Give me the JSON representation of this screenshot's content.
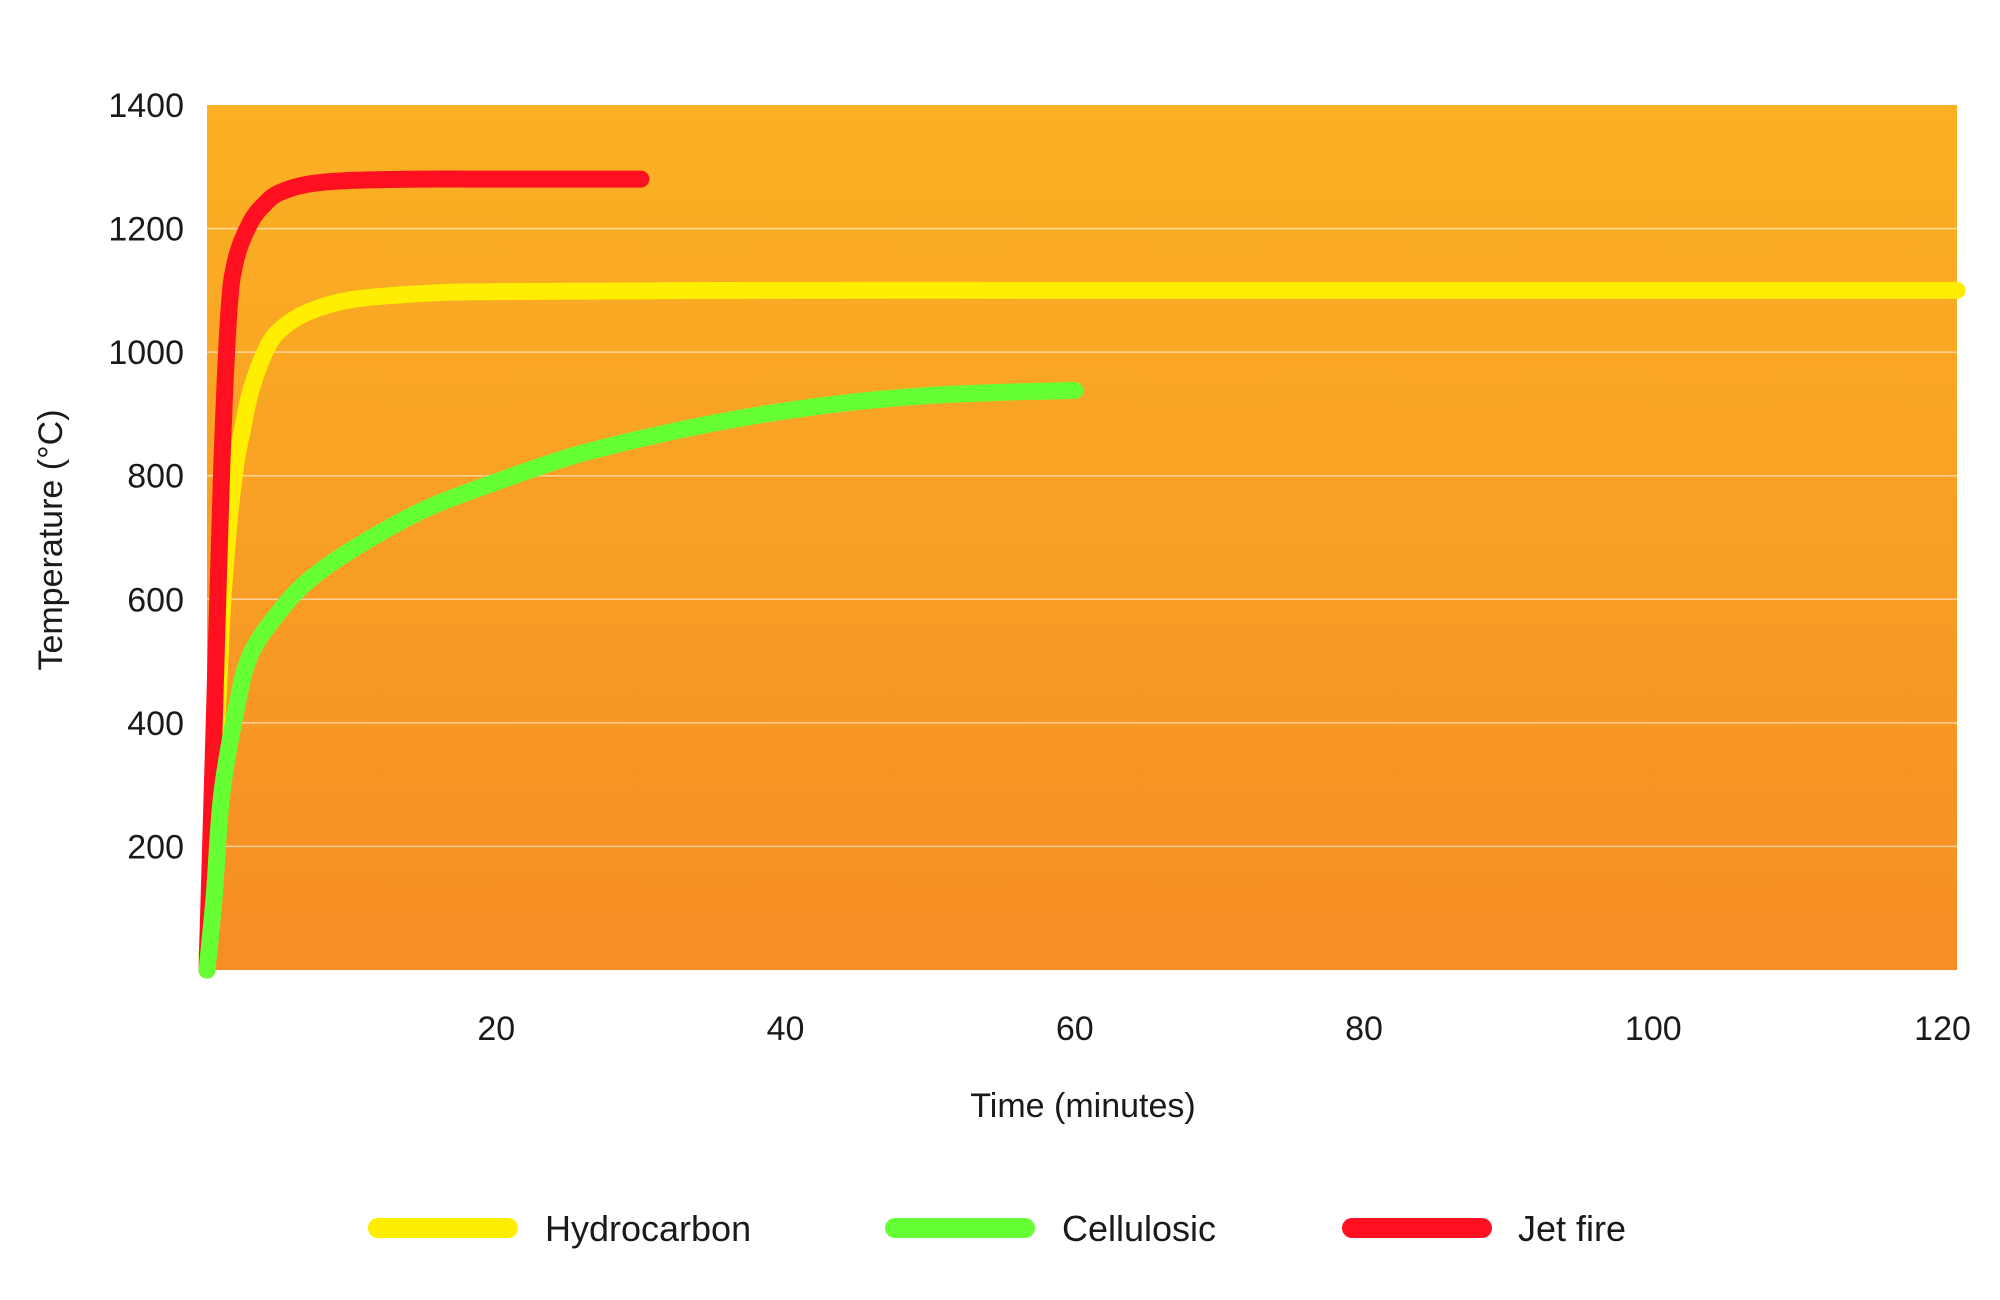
{
  "chart_data": {
    "type": "line",
    "xlabel": "Time (minutes)",
    "ylabel": "Temperature (°C)",
    "xlim": [
      0,
      121
    ],
    "ylim": [
      0,
      1400
    ],
    "x_ticks": [
      20,
      40,
      60,
      80,
      100,
      120
    ],
    "y_ticks": [
      200,
      400,
      600,
      800,
      1000,
      1200,
      1400
    ],
    "grid": true,
    "legend_position": "bottom",
    "plot_background": [
      "#FBB123",
      "#F68D25"
    ],
    "series": [
      {
        "name": "Hydrocarbon",
        "color": "#FFEE00",
        "x": [
          0,
          0.5,
          1,
          1.5,
          2,
          2.5,
          3,
          4,
          5,
          7,
          10,
          15,
          20,
          40,
          60,
          80,
          100,
          121
        ],
        "y": [
          20,
          300,
          560,
          720,
          820,
          880,
          935,
          1000,
          1035,
          1065,
          1085,
          1095,
          1098,
          1100,
          1100,
          1100,
          1100,
          1100
        ]
      },
      {
        "name": "Cellulosic",
        "color": "#66FF33",
        "x": [
          0,
          0.5,
          1,
          2,
          3,
          5,
          7,
          10,
          15,
          20,
          25,
          30,
          35,
          40,
          45,
          50,
          55,
          60
        ],
        "y": [
          0,
          120,
          280,
          420,
          510,
          580,
          630,
          680,
          745,
          790,
          830,
          860,
          885,
          905,
          920,
          930,
          935,
          938
        ]
      },
      {
        "name": "Jet fire",
        "color": "#FF1020",
        "x": [
          0,
          0.5,
          1,
          1.5,
          2,
          3,
          4,
          5,
          7,
          10,
          15,
          20,
          25,
          30
        ],
        "y": [
          0,
          400,
          800,
          1060,
          1150,
          1210,
          1240,
          1258,
          1272,
          1278,
          1280,
          1280,
          1280,
          1280
        ]
      }
    ]
  }
}
